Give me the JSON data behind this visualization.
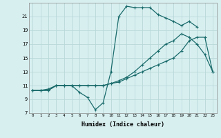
{
  "xlabel": "Humidex (Indice chaleur)",
  "bg_color": "#d8eff0",
  "grid_color": "#b8d8d8",
  "line_color": "#1a6b6b",
  "xlim": [
    -0.5,
    23.5
  ],
  "ylim": [
    7,
    23
  ],
  "xticks": [
    0,
    1,
    2,
    3,
    4,
    5,
    6,
    7,
    8,
    9,
    10,
    11,
    12,
    13,
    14,
    15,
    16,
    17,
    18,
    19,
    20,
    21,
    22,
    23
  ],
  "yticks": [
    7,
    9,
    11,
    13,
    15,
    17,
    19,
    21
  ],
  "series": [
    {
      "x": [
        0,
        1,
        2,
        3,
        4,
        5,
        6,
        7,
        8,
        9,
        10,
        11,
        12,
        13,
        14,
        15,
        16,
        17,
        18,
        19,
        20,
        21,
        22,
        23
      ],
      "y": [
        10.3,
        10.3,
        10.5,
        11,
        11,
        11,
        10,
        9.3,
        7.5,
        8.5,
        13,
        21,
        22.5,
        22.3,
        22.3,
        22.3,
        21.3,
        20.8,
        20.3,
        19.7,
        20.3,
        19.5,
        null,
        null
      ]
    },
    {
      "x": [
        0,
        1,
        2,
        3,
        4,
        5,
        6,
        7,
        8,
        9,
        10,
        11,
        12,
        13,
        14,
        15,
        16,
        17,
        18,
        19,
        20,
        21,
        22,
        23
      ],
      "y": [
        10.3,
        10.3,
        10.3,
        11,
        11,
        11,
        11,
        11,
        11,
        11,
        11.3,
        11.5,
        12,
        12.5,
        13,
        13.5,
        14,
        14.5,
        15,
        16,
        17.5,
        18,
        18,
        13
      ]
    },
    {
      "x": [
        0,
        1,
        2,
        3,
        4,
        5,
        6,
        7,
        8,
        9,
        10,
        11,
        12,
        13,
        14,
        15,
        16,
        17,
        18,
        19,
        20,
        21,
        22,
        23
      ],
      "y": [
        10.3,
        10.3,
        10.3,
        11,
        11,
        11,
        11,
        11,
        11,
        11,
        11.3,
        11.7,
        12.2,
        13,
        14,
        15,
        16,
        17,
        17.5,
        18.5,
        18,
        17,
        15.5,
        13
      ]
    }
  ]
}
